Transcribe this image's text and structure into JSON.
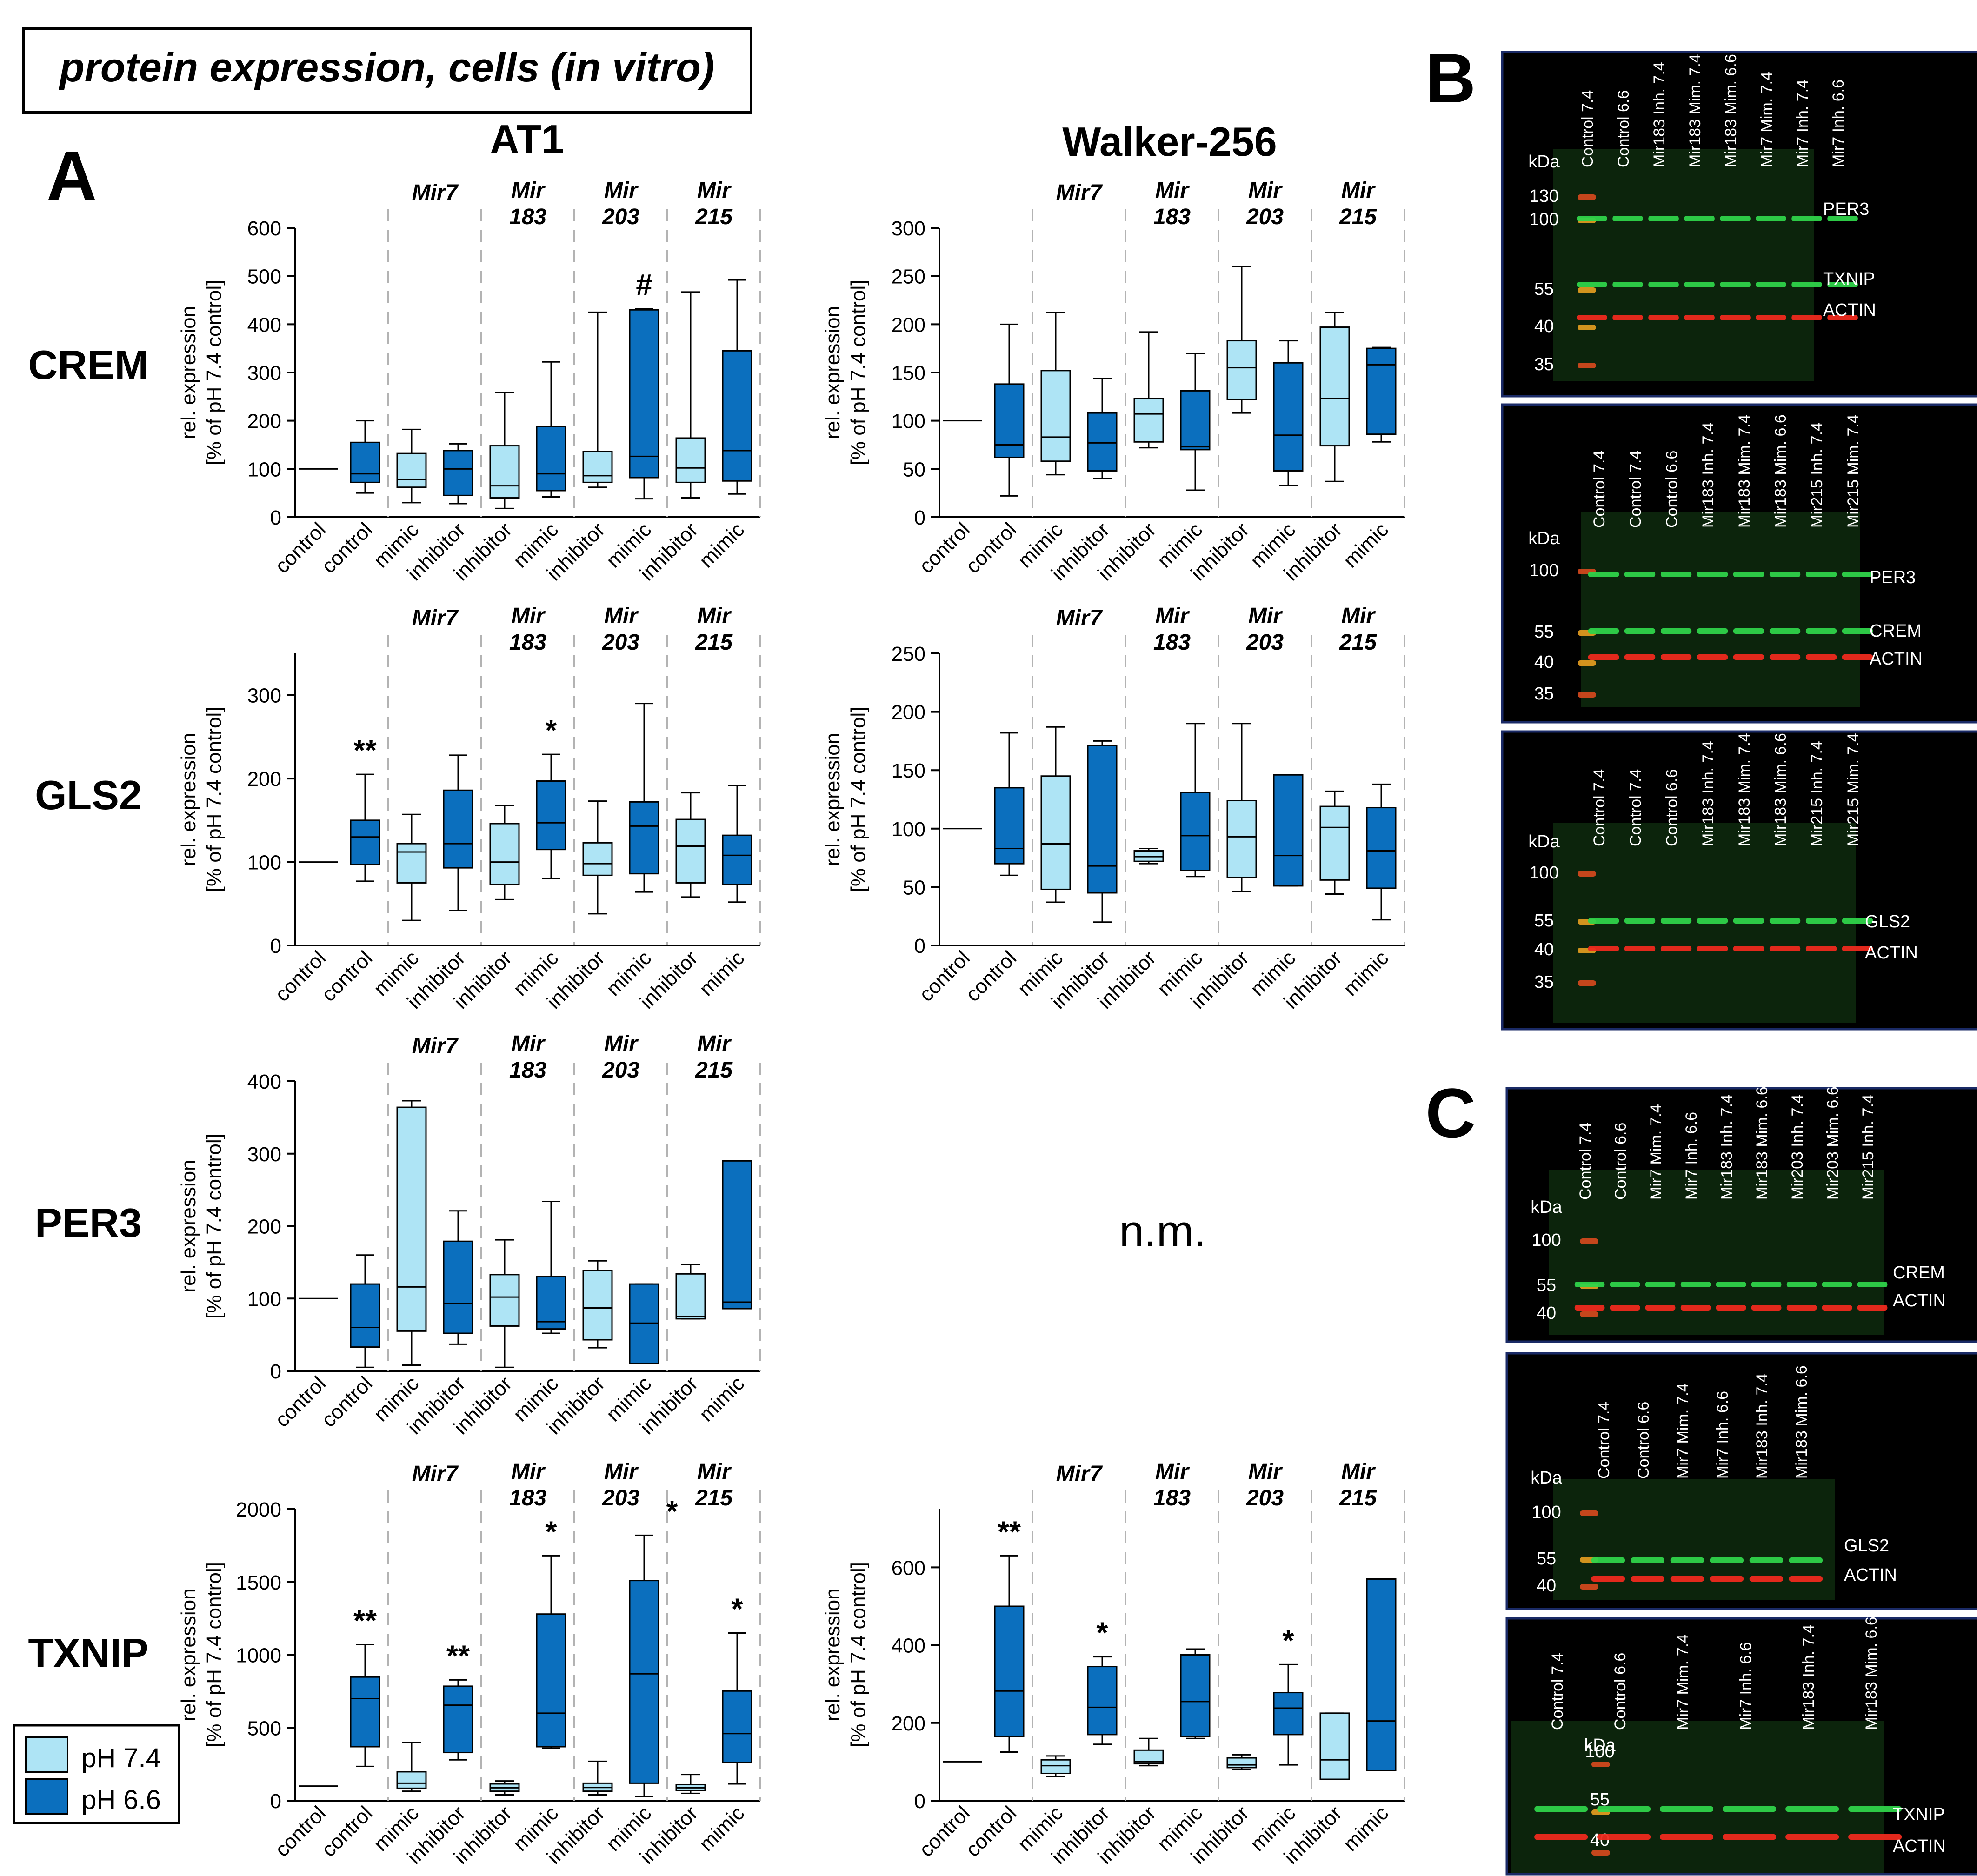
{
  "figure": {
    "title": "protein expression, cells (in vitro)",
    "panel_a_label": "A",
    "panel_b_label": "B",
    "panel_c_label": "C",
    "col_headers": [
      "AT1",
      "Walker-256"
    ],
    "row_labels": [
      "CREM",
      "GLS2",
      "PER3",
      "TXNIP"
    ],
    "not_measured": "n.m.",
    "ylabel_line1": "rel. expression",
    "ylabel_line2": "[% of pH 7.4 control]",
    "group_top": [
      "Mir7",
      "Mir",
      "Mir",
      "Mir"
    ],
    "group_bottom": [
      "",
      "183",
      "203",
      "215"
    ],
    "x_tick_labels": [
      "control",
      "control",
      "mimic",
      "inhibitor",
      "inhibitor",
      "mimic",
      "inhibitor",
      "mimic",
      "inhibitor",
      "mimic"
    ],
    "legend": [
      {
        "label": "pH 7.4",
        "color": "#aee4f5"
      },
      {
        "label": "pH 6.6",
        "color": "#0b6fbe"
      }
    ]
  },
  "chart_data": [
    {
      "id": "at1-crem",
      "type": "box",
      "title": "AT1 CREM",
      "ylim": [
        0,
        600
      ],
      "yticks": [
        0,
        100,
        200,
        300,
        400,
        500,
        600
      ],
      "boxes": [
        {
          "ph": "7.4",
          "whislo": 100,
          "q1": 100,
          "med": 100,
          "q3": 100,
          "whishi": 100
        },
        {
          "ph": "6.6",
          "whislo": 50,
          "q1": 72,
          "med": 90,
          "q3": 155,
          "whishi": 200
        },
        {
          "ph": "7.4",
          "whislo": 30,
          "q1": 62,
          "med": 78,
          "q3": 132,
          "whishi": 182
        },
        {
          "ph": "6.6",
          "whislo": 28,
          "q1": 45,
          "med": 100,
          "q3": 138,
          "whishi": 152
        },
        {
          "ph": "7.4",
          "whislo": 18,
          "q1": 40,
          "med": 65,
          "q3": 148,
          "whishi": 258
        },
        {
          "ph": "6.6",
          "whislo": 42,
          "q1": 55,
          "med": 90,
          "q3": 188,
          "whishi": 322
        },
        {
          "ph": "7.4",
          "whislo": 62,
          "q1": 72,
          "med": 86,
          "q3": 136,
          "whishi": 425
        },
        {
          "ph": "6.6",
          "whislo": 38,
          "q1": 82,
          "med": 126,
          "q3": 430,
          "whishi": 432
        },
        {
          "ph": "7.4",
          "whislo": 40,
          "q1": 72,
          "med": 102,
          "q3": 164,
          "whishi": 467
        },
        {
          "ph": "6.6",
          "whislo": 48,
          "q1": 75,
          "med": 138,
          "q3": 345,
          "whishi": 492
        }
      ],
      "annotations": [
        {
          "box": 7,
          "text": "#"
        }
      ]
    },
    {
      "id": "w256-crem",
      "type": "box",
      "title": "Walker-256 CREM",
      "ylim": [
        0,
        300
      ],
      "yticks": [
        0,
        50,
        100,
        150,
        200,
        250,
        300
      ],
      "boxes": [
        {
          "ph": "7.4",
          "whislo": 100,
          "q1": 100,
          "med": 100,
          "q3": 100,
          "whishi": 100
        },
        {
          "ph": "6.6",
          "whislo": 22,
          "q1": 62,
          "med": 75,
          "q3": 138,
          "whishi": 200
        },
        {
          "ph": "7.4",
          "whislo": 44,
          "q1": 58,
          "med": 83,
          "q3": 152,
          "whishi": 212
        },
        {
          "ph": "6.6",
          "whislo": 40,
          "q1": 48,
          "med": 77,
          "q3": 108,
          "whishi": 144
        },
        {
          "ph": "7.4",
          "whislo": 72,
          "q1": 78,
          "med": 107,
          "q3": 123,
          "whishi": 192
        },
        {
          "ph": "6.6",
          "whislo": 28,
          "q1": 70,
          "med": 73,
          "q3": 131,
          "whishi": 170
        },
        {
          "ph": "7.4",
          "whislo": 108,
          "q1": 122,
          "med": 155,
          "q3": 183,
          "whishi": 260
        },
        {
          "ph": "6.6",
          "whislo": 33,
          "q1": 48,
          "med": 85,
          "q3": 160,
          "whishi": 183
        },
        {
          "ph": "7.4",
          "whislo": 37,
          "q1": 74,
          "med": 123,
          "q3": 197,
          "whishi": 212
        },
        {
          "ph": "6.6",
          "whislo": 78,
          "q1": 86,
          "med": 158,
          "q3": 175,
          "whishi": 176
        }
      ],
      "annotations": []
    },
    {
      "id": "at1-gls2",
      "type": "box",
      "title": "AT1 GLS2",
      "ylim": [
        0,
        350
      ],
      "yticks": [
        0,
        100,
        200,
        300
      ],
      "boxes": [
        {
          "ph": "7.4",
          "whislo": 100,
          "q1": 100,
          "med": 100,
          "q3": 100,
          "whishi": 100
        },
        {
          "ph": "6.6",
          "whislo": 77,
          "q1": 97,
          "med": 130,
          "q3": 150,
          "whishi": 205
        },
        {
          "ph": "7.4",
          "whislo": 30,
          "q1": 75,
          "med": 112,
          "q3": 122,
          "whishi": 157
        },
        {
          "ph": "6.6",
          "whislo": 42,
          "q1": 93,
          "med": 122,
          "q3": 186,
          "whishi": 228
        },
        {
          "ph": "7.4",
          "whislo": 55,
          "q1": 73,
          "med": 100,
          "q3": 146,
          "whishi": 168
        },
        {
          "ph": "6.6",
          "whislo": 80,
          "q1": 115,
          "med": 147,
          "q3": 197,
          "whishi": 229
        },
        {
          "ph": "7.4",
          "whislo": 38,
          "q1": 84,
          "med": 98,
          "q3": 123,
          "whishi": 173
        },
        {
          "ph": "6.6",
          "whislo": 64,
          "q1": 86,
          "med": 143,
          "q3": 172,
          "whishi": 290
        },
        {
          "ph": "7.4",
          "whislo": 58,
          "q1": 75,
          "med": 119,
          "q3": 151,
          "whishi": 183
        },
        {
          "ph": "6.6",
          "whislo": 52,
          "q1": 73,
          "med": 108,
          "q3": 132,
          "whishi": 192
        }
      ],
      "annotations": [
        {
          "box": 1,
          "text": "**"
        },
        {
          "box": 5,
          "text": "*"
        }
      ]
    },
    {
      "id": "w256-gls2",
      "type": "box",
      "title": "Walker-256 GLS2",
      "ylim": [
        0,
        250
      ],
      "yticks": [
        0,
        50,
        100,
        150,
        200,
        250
      ],
      "boxes": [
        {
          "ph": "7.4",
          "whislo": 100,
          "q1": 100,
          "med": 100,
          "q3": 100,
          "whishi": 100
        },
        {
          "ph": "6.6",
          "whislo": 60,
          "q1": 70,
          "med": 83,
          "q3": 135,
          "whishi": 182
        },
        {
          "ph": "7.4",
          "whislo": 37,
          "q1": 48,
          "med": 87,
          "q3": 145,
          "whishi": 187
        },
        {
          "ph": "6.6",
          "whislo": 20,
          "q1": 45,
          "med": 68,
          "q3": 171,
          "whishi": 175
        },
        {
          "ph": "7.4",
          "whislo": 70,
          "q1": 72,
          "med": 76,
          "q3": 81,
          "whishi": 83
        },
        {
          "ph": "6.6",
          "whislo": 59,
          "q1": 64,
          "med": 94,
          "q3": 131,
          "whishi": 190
        },
        {
          "ph": "7.4",
          "whislo": 46,
          "q1": 58,
          "med": 93,
          "q3": 124,
          "whishi": 190
        },
        {
          "ph": "6.6",
          "whislo": 51,
          "q1": 51,
          "med": 77,
          "q3": 146,
          "whishi": 146
        },
        {
          "ph": "7.4",
          "whislo": 44,
          "q1": 56,
          "med": 101,
          "q3": 119,
          "whishi": 132
        },
        {
          "ph": "6.6",
          "whislo": 22,
          "q1": 49,
          "med": 81,
          "q3": 118,
          "whishi": 138
        }
      ],
      "annotations": []
    },
    {
      "id": "at1-per3",
      "type": "box",
      "title": "AT1 PER3",
      "ylim": [
        0,
        400
      ],
      "yticks": [
        0,
        100,
        200,
        300,
        400
      ],
      "boxes": [
        {
          "ph": "7.4",
          "whislo": 100,
          "q1": 100,
          "med": 100,
          "q3": 100,
          "whishi": 100
        },
        {
          "ph": "6.6",
          "whislo": 5,
          "q1": 33,
          "med": 60,
          "q3": 120,
          "whishi": 160
        },
        {
          "ph": "7.4",
          "whislo": 8,
          "q1": 55,
          "med": 116,
          "q3": 364,
          "whishi": 373
        },
        {
          "ph": "6.6",
          "whislo": 37,
          "q1": 52,
          "med": 93,
          "q3": 179,
          "whishi": 221
        },
        {
          "ph": "7.4",
          "whislo": 5,
          "q1": 62,
          "med": 102,
          "q3": 133,
          "whishi": 181
        },
        {
          "ph": "6.6",
          "whislo": 52,
          "q1": 58,
          "med": 68,
          "q3": 130,
          "whishi": 234
        },
        {
          "ph": "7.4",
          "whislo": 32,
          "q1": 43,
          "med": 87,
          "q3": 139,
          "whishi": 152
        },
        {
          "ph": "6.6",
          "whislo": 10,
          "q1": 10,
          "med": 66,
          "q3": 120,
          "whishi": 120
        },
        {
          "ph": "7.4",
          "whislo": 72,
          "q1": 72,
          "med": 75,
          "q3": 134,
          "whishi": 147
        },
        {
          "ph": "6.6",
          "whislo": 86,
          "q1": 86,
          "med": 95,
          "q3": 290,
          "whishi": 290
        }
      ],
      "annotations": []
    },
    {
      "id": "at1-txnip",
      "type": "box",
      "title": "AT1 TXNIP",
      "ylim": [
        0,
        2000
      ],
      "yticks": [
        0,
        500,
        1000,
        1500,
        2000
      ],
      "boxes": [
        {
          "ph": "7.4",
          "whislo": 100,
          "q1": 100,
          "med": 100,
          "q3": 100,
          "whishi": 100
        },
        {
          "ph": "6.6",
          "whislo": 235,
          "q1": 370,
          "med": 700,
          "q3": 848,
          "whishi": 1070
        },
        {
          "ph": "7.4",
          "whislo": 65,
          "q1": 85,
          "med": 120,
          "q3": 198,
          "whishi": 400
        },
        {
          "ph": "6.6",
          "whislo": 280,
          "q1": 330,
          "med": 655,
          "q3": 785,
          "whishi": 828
        },
        {
          "ph": "7.4",
          "whislo": 40,
          "q1": 65,
          "med": 88,
          "q3": 115,
          "whishi": 135
        },
        {
          "ph": "6.6",
          "whislo": 360,
          "q1": 370,
          "med": 600,
          "q3": 1280,
          "whishi": 1680
        },
        {
          "ph": "7.4",
          "whislo": 40,
          "q1": 65,
          "med": 90,
          "q3": 120,
          "whishi": 270
        },
        {
          "ph": "6.6",
          "whislo": 30,
          "q1": 120,
          "med": 870,
          "q3": 1510,
          "whishi": 1820
        },
        {
          "ph": "7.4",
          "whislo": 50,
          "q1": 70,
          "med": 88,
          "q3": 110,
          "whishi": 180
        },
        {
          "ph": "6.6",
          "whislo": 115,
          "q1": 262,
          "med": 460,
          "q3": 752,
          "whishi": 1150
        }
      ],
      "annotations": [
        {
          "box": 1,
          "text": "**"
        },
        {
          "box": 3,
          "text": "**"
        },
        {
          "box": 5,
          "text": "*"
        },
        {
          "box": 7,
          "text": "*"
        },
        {
          "box": 9,
          "text": "*"
        }
      ]
    },
    {
      "id": "w256-txnip",
      "type": "box",
      "title": "Walker-256 TXNIP",
      "ylim": [
        0,
        750
      ],
      "yticks": [
        0,
        200,
        400,
        600
      ],
      "boxes": [
        {
          "ph": "7.4",
          "whislo": 100,
          "q1": 100,
          "med": 100,
          "q3": 100,
          "whishi": 100
        },
        {
          "ph": "6.6",
          "whislo": 125,
          "q1": 165,
          "med": 282,
          "q3": 500,
          "whishi": 630
        },
        {
          "ph": "7.4",
          "whislo": 62,
          "q1": 70,
          "med": 90,
          "q3": 105,
          "whishi": 115
        },
        {
          "ph": "6.6",
          "whislo": 145,
          "q1": 170,
          "med": 240,
          "q3": 345,
          "whishi": 370
        },
        {
          "ph": "7.4",
          "whislo": 90,
          "q1": 95,
          "med": 100,
          "q3": 130,
          "whishi": 160
        },
        {
          "ph": "6.6",
          "whislo": 160,
          "q1": 165,
          "med": 255,
          "q3": 375,
          "whishi": 390
        },
        {
          "ph": "7.4",
          "whislo": 80,
          "q1": 85,
          "med": 92,
          "q3": 110,
          "whishi": 118
        },
        {
          "ph": "6.6",
          "whislo": 92,
          "q1": 170,
          "med": 238,
          "q3": 278,
          "whishi": 350
        },
        {
          "ph": "7.4",
          "whislo": 55,
          "q1": 55,
          "med": 105,
          "q3": 225,
          "whishi": 225
        },
        {
          "ph": "6.6",
          "whislo": 78,
          "q1": 78,
          "med": 205,
          "q3": 570,
          "whishi": 570
        }
      ],
      "annotations": [
        {
          "box": 1,
          "text": "**"
        },
        {
          "box": 3,
          "text": "*"
        },
        {
          "box": 7,
          "text": "*"
        }
      ]
    }
  ],
  "blots": [
    {
      "id": "blot-b1",
      "lanes": [
        "Control 7.4",
        "Control 6.6",
        "Mir183 Inh. 7.4",
        "Mir183 Mim. 7.4",
        "Mir183 Mim. 6.6",
        "Mir7 Mim. 7.4",
        "Mir7 Inh. 7.4",
        "Mir7 Inh. 6.6"
      ],
      "kda_title": "kDa",
      "kda": [
        "130",
        "100",
        "55",
        "40",
        "35"
      ],
      "bands": [
        "PER3",
        "TXNIP",
        "ACTIN"
      ]
    },
    {
      "id": "blot-b2",
      "lanes": [
        "Control 7.4",
        "Control 7.4",
        "Control 6.6",
        "Mir183 Inh. 7.4",
        "Mir183 Mim. 7.4",
        "Mir183 Mim. 6.6",
        "Mir215 Inh. 7.4",
        "Mir215 Mim. 7.4"
      ],
      "kda_title": "kDa",
      "kda": [
        "100",
        "55",
        "40",
        "35"
      ],
      "bands": [
        "PER3",
        "CREM",
        "ACTIN"
      ]
    },
    {
      "id": "blot-b3",
      "lanes": [
        "Control 7.4",
        "Control 7.4",
        "Control 6.6",
        "Mir183 Inh. 7.4",
        "Mir183 Mim. 7.4",
        "Mir183 Mim. 6.6",
        "Mir215 Inh. 7.4",
        "Mir215 Mim. 7.4"
      ],
      "kda_title": "kDa",
      "kda": [
        "100",
        "55",
        "40",
        "35"
      ],
      "bands": [
        "GLS2",
        "ACTIN"
      ]
    },
    {
      "id": "blot-c1",
      "lanes": [
        "Control 7.4",
        "Control 6.6",
        "Mir7 Mim. 7.4",
        "Mir7 Inh. 6.6",
        "Mir183 Inh. 7.4",
        "Mir183 Mim. 6.6",
        "Mir203 Inh. 7.4",
        "Mir203 Mim. 6.6",
        "Mir215 Inh. 7.4"
      ],
      "kda_title": "kDa",
      "kda": [
        "100",
        "55",
        "40"
      ],
      "bands": [
        "CREM",
        "ACTIN"
      ]
    },
    {
      "id": "blot-c2",
      "lanes": [
        "Control 7.4",
        "Control 6.6",
        "Mir7 Mim. 7.4",
        "Mir7 Inh. 6.6",
        "Mir183 Inh. 7.4",
        "Mir183 Mim. 6.6"
      ],
      "kda_title": "kDa",
      "kda": [
        "100",
        "55",
        "40"
      ],
      "bands": [
        "GLS2",
        "ACTIN"
      ]
    },
    {
      "id": "blot-c3",
      "lanes": [
        "Control 7.4",
        "Control 6.6",
        "Mir7 Mim. 7.4",
        "Mir7 Inh. 6.6",
        "Mir183 Inh. 7.4",
        "Mir183 Mim. 6.6"
      ],
      "kda_title": "kDa",
      "kda": [
        "100",
        "55",
        "40"
      ],
      "bands": [
        "TXNIP",
        "ACTIN"
      ]
    }
  ]
}
